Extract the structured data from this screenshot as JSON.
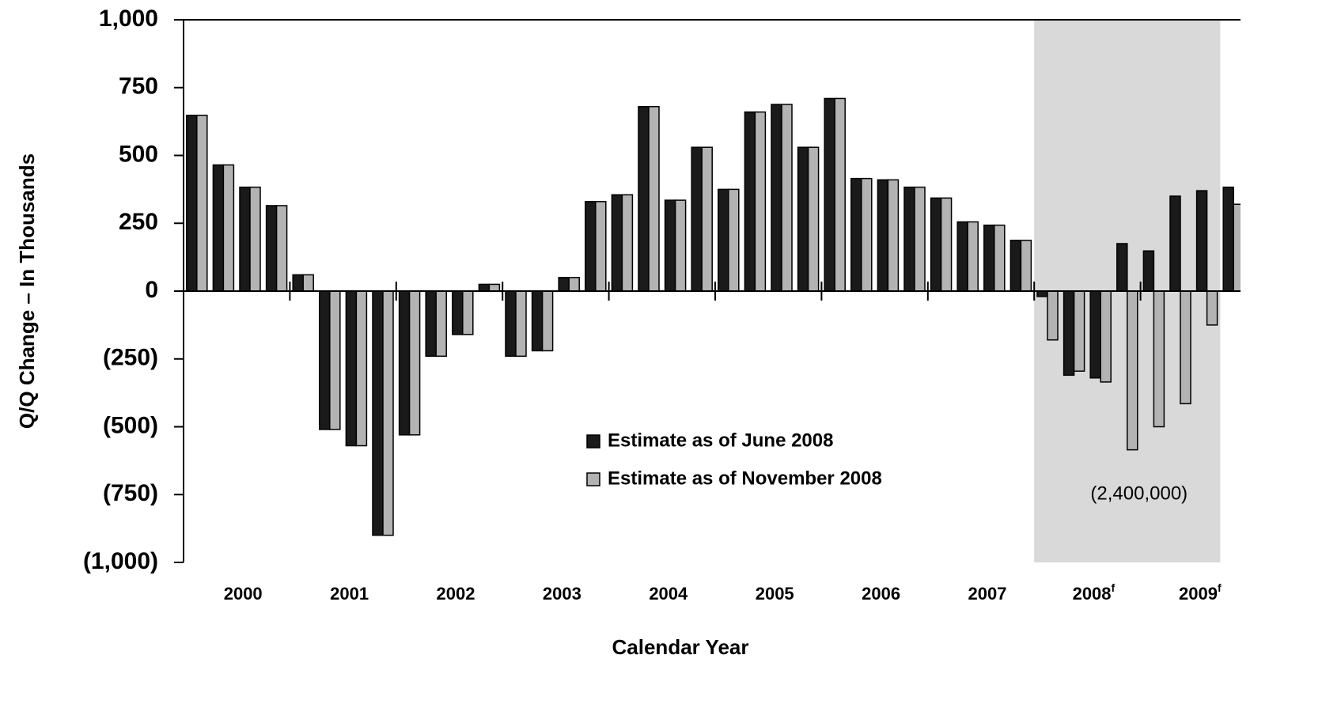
{
  "chart_data": {
    "type": "bar",
    "y_label": "Q/Q Change – In Thousands",
    "x_label": "Calendar Year",
    "categories": [
      null,
      null,
      null,
      null,
      null,
      null,
      null,
      null,
      null,
      null,
      null,
      null,
      null,
      null,
      null,
      null,
      null,
      null,
      null,
      null,
      null,
      null,
      null,
      null,
      null,
      null,
      null,
      null,
      null,
      null,
      null,
      null,
      null,
      null,
      null,
      null,
      null,
      null,
      null,
      null
    ],
    "year_groups": [
      {
        "label": "2000",
        "quarters": 4
      },
      {
        "label": "2001",
        "quarters": 4
      },
      {
        "label": "2002",
        "quarters": 4
      },
      {
        "label": "2003",
        "quarters": 4
      },
      {
        "label": "2004",
        "quarters": 4
      },
      {
        "label": "2005",
        "quarters": 4
      },
      {
        "label": "2006",
        "quarters": 4
      },
      {
        "label": "2007",
        "quarters": 4
      },
      {
        "label": "2008",
        "sup": "f",
        "quarters": 4
      },
      {
        "label": "2009",
        "sup": "f",
        "quarters": 4
      }
    ],
    "series": [
      {
        "name": "Estimate as of June 2008",
        "color": "#1a1a1a",
        "values": [
          648,
          465,
          383,
          315,
          60,
          -510,
          -570,
          -900,
          -530,
          -240,
          -160,
          25,
          -240,
          -220,
          50,
          330,
          355,
          680,
          335,
          530,
          375,
          660,
          688,
          530,
          710,
          415,
          410,
          383,
          343,
          255,
          243,
          187,
          -20,
          -310,
          -320,
          175,
          148,
          350,
          370,
          383
        ]
      },
      {
        "name": "Estimate as of November 2008",
        "color": "#b3b3b3",
        "values": [
          648,
          465,
          383,
          315,
          60,
          -510,
          -570,
          -900,
          -530,
          -240,
          -160,
          25,
          -240,
          -220,
          50,
          330,
          355,
          680,
          335,
          530,
          375,
          660,
          688,
          530,
          710,
          415,
          410,
          383,
          343,
          255,
          243,
          187,
          -180,
          -295,
          -335,
          -585,
          -500,
          -415,
          -125,
          320
        ]
      }
    ],
    "ylim": [
      -1000,
      1000
    ],
    "yticks": [
      {
        "value": -1000,
        "label": "(1,000)"
      },
      {
        "value": -750,
        "label": "(750)"
      },
      {
        "value": -500,
        "label": "(500)"
      },
      {
        "value": -250,
        "label": "(250)"
      },
      0,
      250,
      500,
      750,
      {
        "value": 1000,
        "label": "1,000"
      }
    ],
    "forecast_shade": {
      "from_quarter": 32,
      "to_quarter": 38,
      "color": "#d9d9d9",
      "annotation": "(2,400,000)"
    }
  }
}
